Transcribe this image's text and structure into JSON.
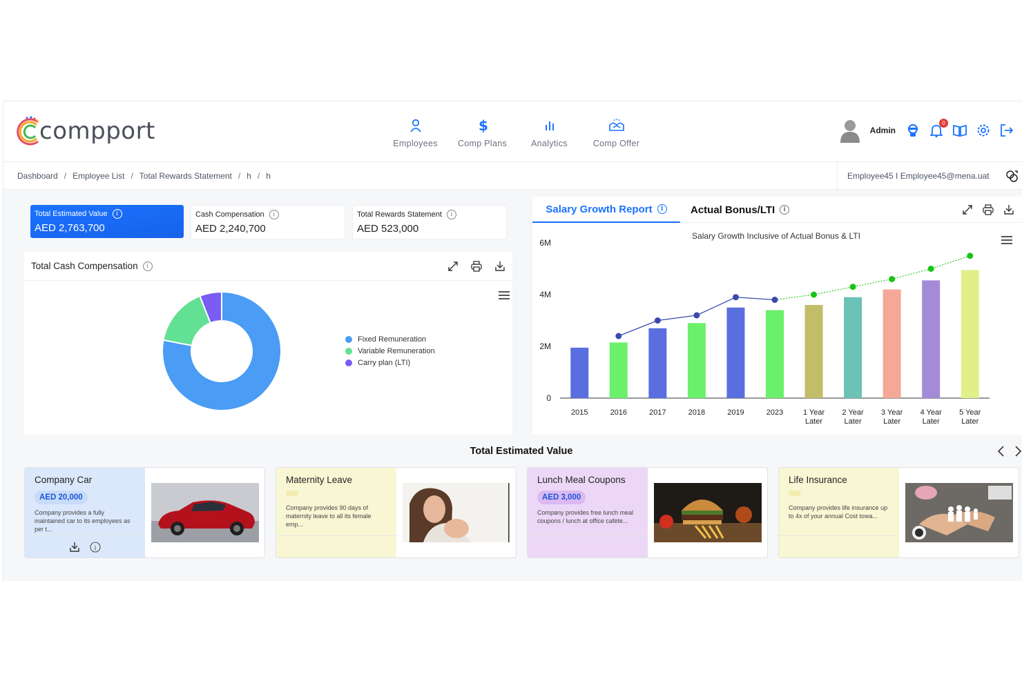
{
  "app": {
    "brand": "compport",
    "accent": "#1a73ff"
  },
  "nav": [
    {
      "label": "Employees",
      "icon": "person-icon"
    },
    {
      "label": "Comp Plans",
      "icon": "dollar-icon"
    },
    {
      "label": "Analytics",
      "icon": "bar-chart-icon"
    },
    {
      "label": "Comp Offer",
      "icon": "handshake-icon"
    }
  ],
  "user": {
    "name": "Admin",
    "notifications": "0"
  },
  "breadcrumb": [
    "Dashboard",
    "Employee List",
    "Total Rewards Statement",
    "h",
    "h"
  ],
  "employee": {
    "info": "Employee45 I Employee45@mena.uat"
  },
  "kpis": [
    {
      "title": "Total Estimated Value",
      "value": "AED 2,763,700"
    },
    {
      "title": "Cash Compensation",
      "value": "AED 2,240,700"
    },
    {
      "title": "Total Rewards Statement",
      "value": "AED 523,000"
    }
  ],
  "tcc": {
    "title": "Total Cash Compensation",
    "legend": [
      {
        "label": "Fixed Remuneration",
        "color": "#4a9cf5"
      },
      {
        "label": "Variable Remuneration",
        "color": "#62e093"
      },
      {
        "label": "Carry plan (LTI)",
        "color": "#7b5cf5"
      }
    ]
  },
  "tabs": {
    "salary_growth": "Salary Growth Report",
    "actual_bonus": "Actual Bonus/LTI"
  },
  "chart_data": [
    {
      "type": "pie",
      "categories": [
        "Fixed Remuneration",
        "Variable Remuneration",
        "Carry plan (LTI)"
      ],
      "values": [
        78,
        16,
        6
      ],
      "colors": [
        "#4a9cf5",
        "#62e093",
        "#7b5cf5"
      ],
      "donut": true,
      "legend": "right"
    },
    {
      "type": "bar",
      "title": "Salary Growth Inclusive of Actual Bonus & LTI",
      "categories": [
        "2015",
        "2016",
        "2017",
        "2018",
        "2019",
        "2023",
        "1 Year Later",
        "2 Year Later",
        "3 Year Later",
        "4 Year Later",
        "5 Year Later"
      ],
      "yticks": [
        "0",
        "2M",
        "4M",
        "6M"
      ],
      "ylim": [
        0,
        6000000
      ],
      "series": [
        {
          "type": "bar",
          "values": [
            1950000,
            2150000,
            2700000,
            2900000,
            3500000,
            3400000,
            3600000,
            3900000,
            4200000,
            4550000,
            4950000
          ],
          "colors": [
            "#5b6ee0",
            "#6bf06b",
            "#5b6ee0",
            "#6bf06b",
            "#5b6ee0",
            "#6bf06b",
            "#c2bd68",
            "#6cc2b6",
            "#f5a898",
            "#a48bd8",
            "#e1ef8a"
          ]
        },
        {
          "type": "line",
          "values": [
            null,
            2400000,
            3000000,
            3200000,
            3900000,
            3800000,
            4000000,
            4300000,
            4600000,
            5000000,
            5500000
          ],
          "colors": [
            "#3949ab",
            "#17c417"
          ]
        }
      ],
      "grid": false
    }
  ],
  "tev": {
    "title": "Total Estimated Value",
    "cards": [
      {
        "title": "Company Car",
        "amount": "AED 20,000",
        "desc": "Company provides a fully maintained car to its employees as per t...",
        "bg": "#dbe8fb",
        "pill": "#c8dcf8",
        "img": "car"
      },
      {
        "title": "Maternity Leave",
        "amount": "",
        "desc": "Company provides 90 days of maternity leave to all its female emp...",
        "bg": "#f9f6d4",
        "pill": "#f2ecb0",
        "img": "mother"
      },
      {
        "title": "Lunch Meal Coupons",
        "amount": "AED 3,000",
        "desc": "Company provides free lunch meal coupons / lunch at office cafete...",
        "bg": "#ecd8f6",
        "pill": "#dcb9f1",
        "img": "food"
      },
      {
        "title": "Life Insurance",
        "amount": "",
        "desc": "Company provides life insurance up to 4x of your annual Cost towa...",
        "bg": "#f9f6d4",
        "pill": "#f2ecb0",
        "img": "family"
      }
    ]
  }
}
